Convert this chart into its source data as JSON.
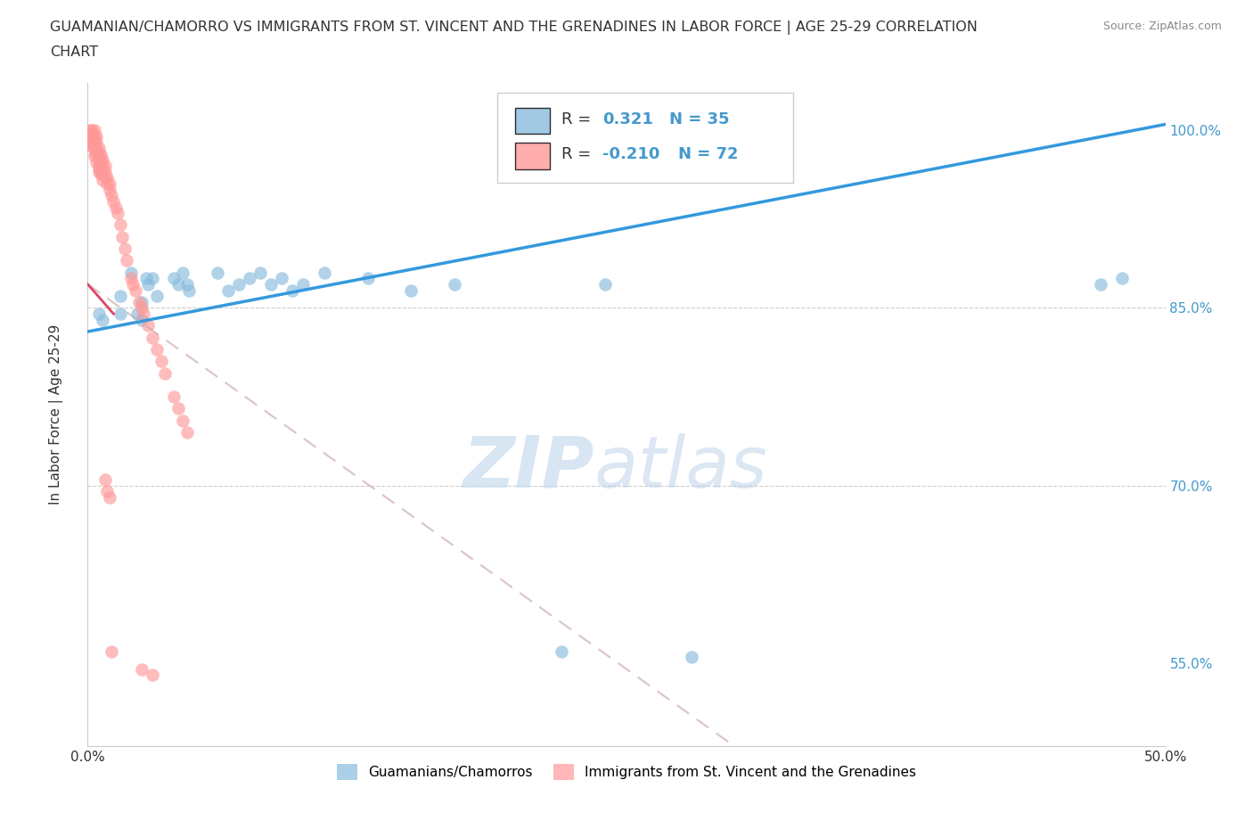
{
  "title_line1": "GUAMANIAN/CHAMORRO VS IMMIGRANTS FROM ST. VINCENT AND THE GRENADINES IN LABOR FORCE | AGE 25-29 CORRELATION",
  "title_line2": "CHART",
  "source": "Source: ZipAtlas.com",
  "ylabel": "In Labor Force | Age 25-29",
  "xmin": 0.0,
  "xmax": 0.5,
  "ymin": 0.48,
  "ymax": 1.04,
  "ytick_positions": [
    0.55,
    0.7,
    0.85,
    1.0
  ],
  "ytick_labels": [
    "55.0%",
    "70.0%",
    "85.0%",
    "100.0%"
  ],
  "xticks": [
    0.0,
    0.1,
    0.2,
    0.3,
    0.4,
    0.5
  ],
  "xtick_labels": [
    "0.0%",
    "",
    "",
    "",
    "",
    "50.0%"
  ],
  "blue_color": "#88BBDD",
  "pink_color": "#FF9999",
  "blue_R": "0.321",
  "blue_N": "35",
  "pink_R": "-0.210",
  "pink_N": "72",
  "legend_label_blue": "Guamanians/Chamorros",
  "legend_label_pink": "Immigrants from St. Vincent and the Grenadines",
  "watermark_zip": "ZIP",
  "watermark_atlas": "atlas",
  "blue_trend_x": [
    0.0,
    0.5
  ],
  "blue_trend_y": [
    0.83,
    1.005
  ],
  "pink_trend_x": [
    0.0,
    0.3
  ],
  "pink_trend_y": [
    0.87,
    0.48
  ],
  "blue_scatter_x": [
    0.005,
    0.007,
    0.015,
    0.015,
    0.02,
    0.023,
    0.025,
    0.025,
    0.027,
    0.028,
    0.03,
    0.032,
    0.04,
    0.042,
    0.044,
    0.046,
    0.047,
    0.06,
    0.065,
    0.07,
    0.075,
    0.08,
    0.085,
    0.09,
    0.095,
    0.1,
    0.11,
    0.13,
    0.15,
    0.17,
    0.22,
    0.24,
    0.28,
    0.47,
    0.48
  ],
  "blue_scatter_y": [
    0.845,
    0.84,
    0.86,
    0.845,
    0.88,
    0.845,
    0.84,
    0.855,
    0.875,
    0.87,
    0.875,
    0.86,
    0.875,
    0.87,
    0.88,
    0.87,
    0.865,
    0.88,
    0.865,
    0.87,
    0.875,
    0.88,
    0.87,
    0.875,
    0.865,
    0.87,
    0.88,
    0.875,
    0.865,
    0.87,
    0.56,
    0.87,
    0.555,
    0.87,
    0.875
  ],
  "pink_scatter_x": [
    0.001,
    0.001,
    0.002,
    0.002,
    0.002,
    0.003,
    0.003,
    0.003,
    0.003,
    0.004,
    0.004,
    0.004,
    0.004,
    0.005,
    0.005,
    0.005,
    0.005,
    0.005,
    0.006,
    0.006,
    0.006,
    0.006,
    0.007,
    0.007,
    0.007,
    0.008,
    0.008,
    0.008,
    0.009,
    0.009,
    0.01,
    0.01,
    0.011,
    0.012,
    0.013,
    0.014,
    0.015,
    0.016,
    0.017,
    0.018,
    0.02,
    0.021,
    0.022,
    0.024,
    0.025,
    0.026,
    0.028,
    0.03,
    0.032,
    0.034,
    0.036,
    0.04,
    0.042,
    0.044,
    0.046,
    0.001,
    0.002,
    0.002,
    0.001,
    0.002,
    0.003,
    0.003,
    0.004,
    0.005,
    0.006,
    0.007,
    0.008,
    0.009,
    0.01,
    0.011,
    0.025,
    0.03
  ],
  "pink_scatter_y": [
    1.0,
    0.995,
    1.0,
    0.995,
    0.99,
    1.0,
    0.995,
    0.99,
    0.985,
    0.995,
    0.99,
    0.985,
    0.98,
    0.985,
    0.98,
    0.975,
    0.97,
    0.965,
    0.98,
    0.975,
    0.97,
    0.965,
    0.975,
    0.97,
    0.965,
    0.97,
    0.965,
    0.96,
    0.96,
    0.955,
    0.955,
    0.95,
    0.945,
    0.94,
    0.935,
    0.93,
    0.92,
    0.91,
    0.9,
    0.89,
    0.875,
    0.87,
    0.865,
    0.855,
    0.85,
    0.845,
    0.835,
    0.825,
    0.815,
    0.805,
    0.795,
    0.775,
    0.765,
    0.755,
    0.745,
    0.998,
    0.997,
    0.992,
    0.988,
    0.987,
    0.983,
    0.978,
    0.973,
    0.968,
    0.963,
    0.958,
    0.705,
    0.695,
    0.69,
    0.56,
    0.545,
    0.54
  ]
}
